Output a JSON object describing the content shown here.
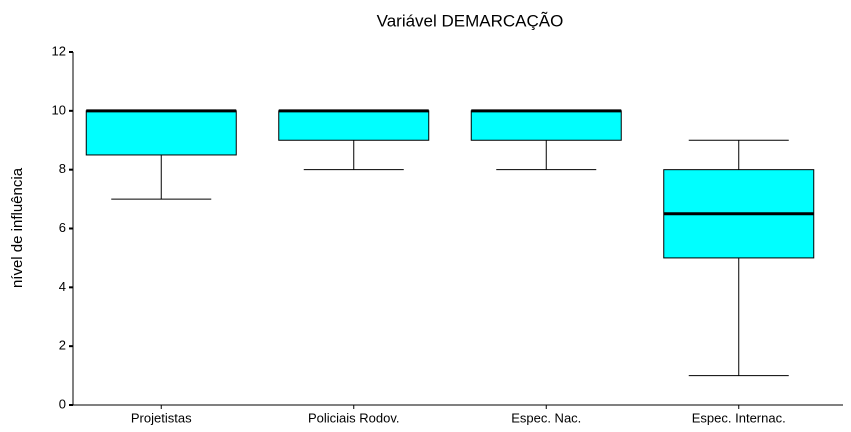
{
  "chart_data": {
    "type": "box",
    "title": "Variável DEMARCAÇÃO",
    "y_label": "nível de influência",
    "categories": [
      "Projetistas",
      "Policiais Rodov.",
      "Espec. Nac.",
      "Espec. Internac."
    ],
    "boxes": [
      {
        "min": 7,
        "q1": 8.5,
        "median": 10,
        "q3": 10,
        "max": 10
      },
      {
        "min": 8,
        "q1": 9,
        "median": 10,
        "q3": 10,
        "max": 10
      },
      {
        "min": 8,
        "q1": 9,
        "median": 10,
        "q3": 10,
        "max": 10
      },
      {
        "min": 1,
        "q1": 5,
        "median": 6.5,
        "q3": 8,
        "max": 9
      }
    ],
    "color": "#00ffff",
    "ylim": [
      0,
      12
    ],
    "yticks": [
      0,
      2,
      4,
      6,
      8,
      10,
      12
    ]
  }
}
